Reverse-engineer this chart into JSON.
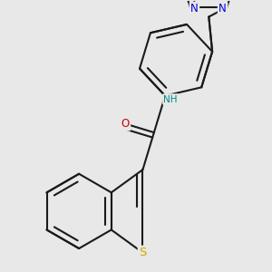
{
  "bg_color": "#e8e8e8",
  "bond_color": "#1a1a1a",
  "bond_width": 1.5,
  "S_color": "#ccaa00",
  "N_color": "#0000dd",
  "O_color": "#cc0000",
  "NH_color": "#008888",
  "font_size": 8.5,
  "figsize": [
    3.0,
    3.0
  ],
  "dpi": 100,
  "xlim": [
    -2.6,
    2.6
  ],
  "ylim": [
    -2.8,
    2.4
  ]
}
